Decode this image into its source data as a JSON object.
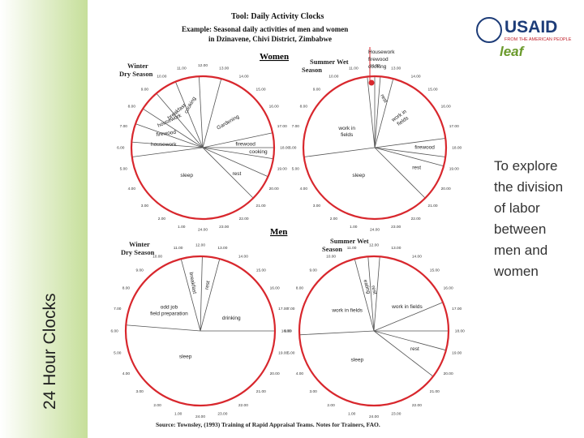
{
  "sidebar_title": "24 Hour Clocks",
  "side_text": "To explore the division of labor between men and women",
  "header": {
    "title": "Tool: Daily Activity Clocks",
    "example_line1": "Example: Seasonal daily activities of men and women",
    "example_line2": "in Dzinavene, Chivi District, Zimbabwe"
  },
  "logos": {
    "usaid": "USAID",
    "usaid_tagline": "FROM THE AMERICAN PEOPLE",
    "leaf": "leaf"
  },
  "hour_labels": [
    "1.00",
    "2.00",
    "3.00",
    "4.00",
    "5.00",
    "6.00",
    "7.00",
    "8.00",
    "9.00",
    "10.00",
    "11.00",
    "12.00",
    "13.00",
    "14.00",
    "15.00",
    "16.00",
    "17.00",
    "18.00",
    "19.00",
    "20.00",
    "21.00",
    "22.00",
    "23.00",
    "24.00"
  ],
  "groups": [
    {
      "label": "Women",
      "clocks": [
        {
          "title": [
            "Winter",
            "Dry Season"
          ],
          "activities": [
            {
              "lines": [
                "cooking"
              ]
            },
            {
              "lines": [
                "breakfast"
              ]
            },
            {
              "lines": [
                "housework"
              ]
            },
            {
              "lines": [
                "firewood"
              ]
            },
            {
              "lines": [
                "housework"
              ]
            },
            {
              "lines": [
                "Gardening"
              ]
            },
            {
              "lines": [
                "firewood"
              ]
            },
            {
              "lines": [
                "cooking"
              ]
            },
            {
              "lines": [
                "rest"
              ]
            },
            {
              "lines": [
                "sleep"
              ]
            }
          ]
        },
        {
          "title": [
            "Summer Wet",
            "Season"
          ],
          "note": [
            "Housework",
            "firewood",
            "cooking"
          ],
          "activities": [
            {
              "lines": [
                "rest"
              ]
            },
            {
              "lines": [
                "work in",
                "fields"
              ]
            },
            {
              "lines": [
                "work in",
                "fields"
              ]
            },
            {
              "lines": [
                "firewood"
              ]
            },
            {
              "lines": [
                "rest"
              ]
            },
            {
              "lines": [
                "sleep"
              ]
            }
          ]
        }
      ]
    },
    {
      "label": "Men",
      "clocks": [
        {
          "title": [
            "Winter",
            "Dry Season"
          ],
          "activities": [
            {
              "lines": [
                "breakfast"
              ]
            },
            {
              "lines": [
                "rest"
              ]
            },
            {
              "lines": [
                "odd job",
                "field preparation"
              ]
            },
            {
              "lines": [
                "drinking"
              ]
            },
            {
              "lines": [
                "sleep"
              ]
            }
          ]
        },
        {
          "title": [
            "Summer Wet",
            "Season"
          ],
          "activities": [
            {
              "lines": [
                "eating"
              ]
            },
            {
              "lines": [
                "rest"
              ]
            },
            {
              "lines": [
                "work in fields"
              ]
            },
            {
              "lines": [
                "work in fields"
              ]
            },
            {
              "lines": [
                "rest"
              ]
            },
            {
              "lines": [
                "sleep"
              ]
            }
          ]
        }
      ]
    }
  ],
  "source": "Source: Townsley, (1993) Training of Rapid Appraisal Teams. Notes for Trainers, FAO."
}
